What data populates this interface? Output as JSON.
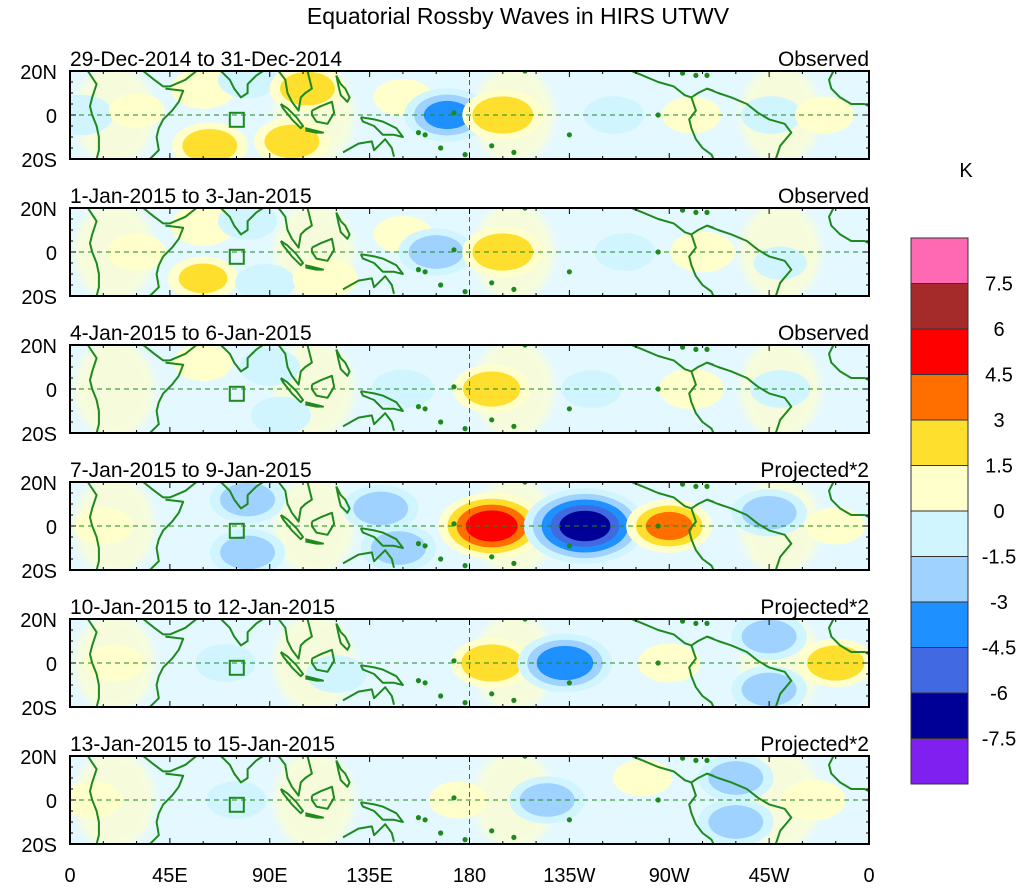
{
  "chart_data": {
    "type": "heatmap",
    "title": "Equatorial Rossby Waves in HIRS UTWV",
    "colorbar": {
      "unit_label": "K",
      "levels": [
        -7.5,
        -6,
        -4.5,
        -3,
        -1.5,
        0,
        1.5,
        3,
        4.5,
        6,
        7.5
      ],
      "level_labels": [
        "7.5",
        "6",
        "4.5",
        "3",
        "1.5",
        "0",
        "-1.5",
        "-3",
        "-4.5",
        "-6",
        "-7.5"
      ],
      "colors_top_to_bottom": [
        "#ff69b4",
        "#a52a2a",
        "#ff0000",
        "#ff6f00",
        "#ffdf2e",
        "#ffffcc",
        "#d0f5ff",
        "#a0d2ff",
        "#1e90ff",
        "#4169e1",
        "#000096",
        "#8020f0"
      ]
    },
    "x_axis": {
      "ticks": [
        "0",
        "45E",
        "90E",
        "135E",
        "180",
        "135W",
        "90W",
        "45W",
        "0"
      ],
      "range_deg_east": [
        0,
        360
      ]
    },
    "y_axis": {
      "ticks": [
        "20N",
        "0",
        "20S"
      ],
      "range_deg": [
        -20,
        20
      ]
    },
    "panels": [
      {
        "date_range": "29-Dec-2014 to 31-Dec-2014",
        "kind": "Observed",
        "anomalies": [
          {
            "lon": 5,
            "lat": 0,
            "value": -2.0
          },
          {
            "lon": 30,
            "lat": 2,
            "value": 1.2
          },
          {
            "lon": 60,
            "lat": 12,
            "value": 2.0
          },
          {
            "lon": 63,
            "lat": -14,
            "value": 3.0
          },
          {
            "lon": 80,
            "lat": 16,
            "value": -1.5
          },
          {
            "lon": 100,
            "lat": -12,
            "value": 3.0
          },
          {
            "lon": 107,
            "lat": 12,
            "value": 3.0
          },
          {
            "lon": 150,
            "lat": 8,
            "value": 1.5
          },
          {
            "lon": 170,
            "lat": 0,
            "value": -4.0
          },
          {
            "lon": 195,
            "lat": 0,
            "value": 3.5
          },
          {
            "lon": 245,
            "lat": 0,
            "value": -1.6
          },
          {
            "lon": 280,
            "lat": 0,
            "value": 1.5
          },
          {
            "lon": 316,
            "lat": 0,
            "value": -1.6
          },
          {
            "lon": 340,
            "lat": 0,
            "value": 1.5
          }
        ]
      },
      {
        "date_range": "1-Jan-2015 to 3-Jan-2015",
        "kind": "Observed",
        "anomalies": [
          {
            "lon": 30,
            "lat": 0,
            "value": 1.5
          },
          {
            "lon": 60,
            "lat": 12,
            "value": 2.0
          },
          {
            "lon": 60,
            "lat": -12,
            "value": 2.5
          },
          {
            "lon": 80,
            "lat": 14,
            "value": -1.5
          },
          {
            "lon": 88,
            "lat": -14,
            "value": -1.6
          },
          {
            "lon": 115,
            "lat": -12,
            "value": 2.0
          },
          {
            "lon": 150,
            "lat": 8,
            "value": 1.5
          },
          {
            "lon": 165,
            "lat": 0,
            "value": -3.0
          },
          {
            "lon": 195,
            "lat": 0,
            "value": 3.5
          },
          {
            "lon": 250,
            "lat": 0,
            "value": -1.6
          },
          {
            "lon": 285,
            "lat": 0,
            "value": 2.0
          },
          {
            "lon": 320,
            "lat": -5,
            "value": -1.0
          }
        ]
      },
      {
        "date_range": "4-Jan-2015 to 6-Jan-2015",
        "kind": "Observed",
        "anomalies": [
          {
            "lon": 60,
            "lat": 12,
            "value": 1.5
          },
          {
            "lon": 90,
            "lat": 10,
            "value": -1.6
          },
          {
            "lon": 95,
            "lat": -12,
            "value": -1.6
          },
          {
            "lon": 150,
            "lat": 0,
            "value": -1.8
          },
          {
            "lon": 190,
            "lat": 0,
            "value": 3.2
          },
          {
            "lon": 235,
            "lat": 0,
            "value": -1.6
          },
          {
            "lon": 280,
            "lat": 0,
            "value": 2.0
          },
          {
            "lon": 320,
            "lat": 0,
            "value": -1.6
          }
        ]
      },
      {
        "date_range": "7-Jan-2015 to 9-Jan-2015",
        "kind": "Projected*2",
        "anomalies": [
          {
            "lon": 15,
            "lat": 0,
            "value": 1.5
          },
          {
            "lon": 80,
            "lat": 12,
            "value": -3.0
          },
          {
            "lon": 80,
            "lat": -12,
            "value": -3.0
          },
          {
            "lon": 140,
            "lat": 8,
            "value": -3.0
          },
          {
            "lon": 148,
            "lat": -10,
            "value": -3.0
          },
          {
            "lon": 190,
            "lat": 0,
            "value": 6.0
          },
          {
            "lon": 232,
            "lat": 0,
            "value": -7.5
          },
          {
            "lon": 270,
            "lat": 0,
            "value": 4.0
          },
          {
            "lon": 315,
            "lat": 6,
            "value": -3.0
          },
          {
            "lon": 345,
            "lat": 0,
            "value": 1.5
          }
        ]
      },
      {
        "date_range": "10-Jan-2015 to 12-Jan-2015",
        "kind": "Projected*2",
        "anomalies": [
          {
            "lon": 20,
            "lat": 0,
            "value": 1.5
          },
          {
            "lon": 70,
            "lat": 0,
            "value": -1.6
          },
          {
            "lon": 120,
            "lat": -5,
            "value": -1.6
          },
          {
            "lon": 190,
            "lat": 0,
            "value": 3.5
          },
          {
            "lon": 223,
            "lat": 0,
            "value": -4.8
          },
          {
            "lon": 270,
            "lat": 0,
            "value": 1.8
          },
          {
            "lon": 315,
            "lat": 12,
            "value": -3.0
          },
          {
            "lon": 315,
            "lat": -12,
            "value": -3.0
          },
          {
            "lon": 345,
            "lat": 0,
            "value": 3.2
          }
        ]
      },
      {
        "date_range": "13-Jan-2015 to 15-Jan-2015",
        "kind": "Projected*2",
        "anomalies": [
          {
            "lon": 10,
            "lat": 0,
            "value": 1.5
          },
          {
            "lon": 75,
            "lat": 0,
            "value": -1.6
          },
          {
            "lon": 175,
            "lat": 0,
            "value": 1.5
          },
          {
            "lon": 215,
            "lat": 0,
            "value": -3.0
          },
          {
            "lon": 258,
            "lat": 10,
            "value": 1.5
          },
          {
            "lon": 300,
            "lat": 10,
            "value": -3.0
          },
          {
            "lon": 300,
            "lat": -10,
            "value": -3.0
          },
          {
            "lon": 335,
            "lat": 0,
            "value": 2.0
          }
        ]
      }
    ],
    "grid": false,
    "legend_position": "right"
  }
}
